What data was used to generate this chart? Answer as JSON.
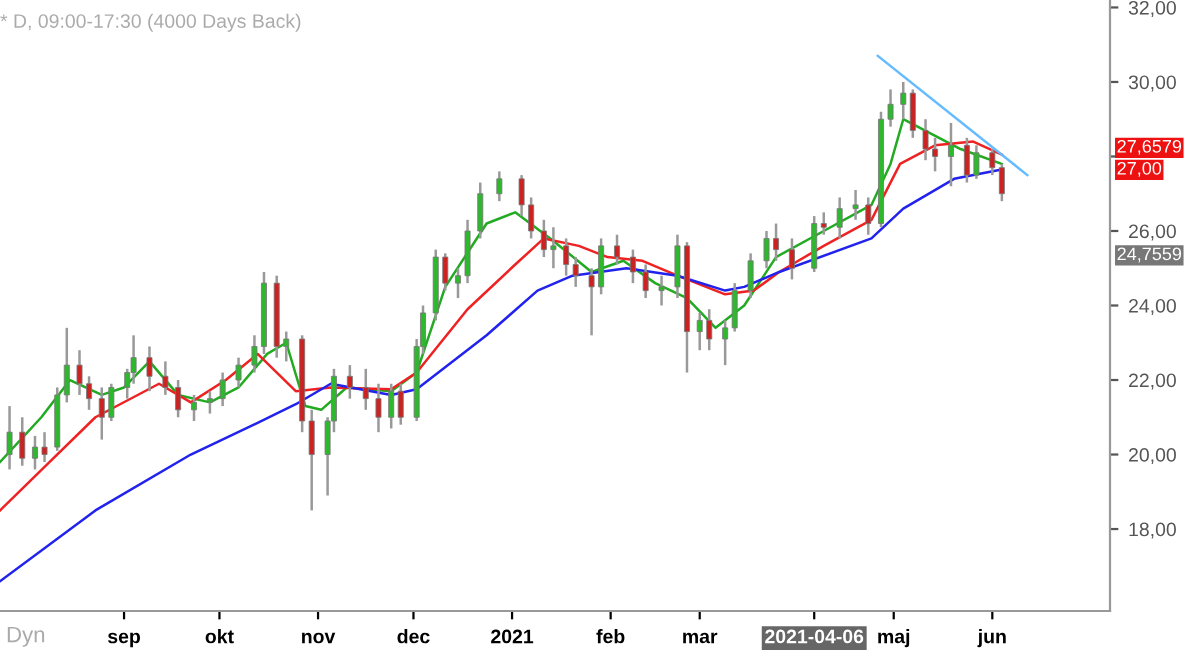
{
  "chart_data": {
    "type": "candlestick",
    "title": "* D, 09:00-17:30 (4000 Days Back)",
    "x": [
      "2020-07-27",
      "2020-07-31",
      "2020-08-04",
      "2020-08-07",
      "2020-08-11",
      "2020-08-14",
      "2020-08-18",
      "2020-08-21",
      "2020-08-25",
      "2020-08-28",
      "2020-09-02",
      "2020-09-04",
      "2020-09-09",
      "2020-09-14",
      "2020-09-18",
      "2020-09-23",
      "2020-09-28",
      "2020-10-02",
      "2020-10-07",
      "2020-10-12",
      "2020-10-15",
      "2020-10-19",
      "2020-10-22",
      "2020-10-27",
      "2020-10-30",
      "2020-11-04",
      "2020-11-06",
      "2020-11-11",
      "2020-11-16",
      "2020-11-20",
      "2020-11-24",
      "2020-11-27",
      "2020-12-02",
      "2020-12-04",
      "2020-12-08",
      "2020-12-11",
      "2020-12-15",
      "2020-12-18",
      "2020-12-22",
      "2020-12-28",
      "2021-01-04",
      "2021-01-07",
      "2021-01-11",
      "2021-01-14",
      "2021-01-18",
      "2021-01-21",
      "2021-01-26",
      "2021-01-29",
      "2021-02-03",
      "2021-02-08",
      "2021-02-12",
      "2021-02-17",
      "2021-02-22",
      "2021-02-25",
      "2021-03-01",
      "2021-03-04",
      "2021-03-09",
      "2021-03-12",
      "2021-03-17",
      "2021-03-22",
      "2021-03-25",
      "2021-03-30",
      "2021-04-06",
      "2021-04-09",
      "2021-04-14",
      "2021-04-19",
      "2021-04-23",
      "2021-04-27",
      "2021-04-30",
      "2021-05-04",
      "2021-05-07",
      "2021-05-11",
      "2021-05-14",
      "2021-05-19",
      "2021-05-24",
      "2021-05-27",
      "2021-06-01",
      "2021-06-04"
    ],
    "ohlc": [
      [
        20.0,
        21.3,
        19.6,
        20.6
      ],
      [
        20.6,
        21.0,
        19.7,
        19.9
      ],
      [
        19.9,
        20.5,
        19.6,
        20.2
      ],
      [
        20.2,
        20.6,
        19.8,
        20.0
      ],
      [
        20.2,
        21.8,
        20.1,
        21.6
      ],
      [
        21.6,
        23.4,
        21.4,
        22.4
      ],
      [
        22.4,
        22.8,
        21.6,
        21.9
      ],
      [
        21.9,
        22.1,
        21.2,
        21.5
      ],
      [
        21.5,
        21.8,
        20.4,
        21.0
      ],
      [
        21.0,
        21.9,
        20.9,
        21.8
      ],
      [
        21.8,
        22.3,
        21.5,
        22.2
      ],
      [
        22.2,
        23.2,
        21.9,
        22.6
      ],
      [
        22.6,
        22.9,
        21.7,
        22.1
      ],
      [
        22.1,
        22.5,
        21.6,
        21.8
      ],
      [
        21.8,
        22.0,
        21.0,
        21.2
      ],
      [
        21.2,
        21.6,
        20.9,
        21.4
      ],
      [
        21.4,
        21.7,
        21.1,
        21.5
      ],
      [
        21.5,
        22.2,
        21.3,
        22.0
      ],
      [
        22.0,
        22.6,
        21.8,
        22.4
      ],
      [
        22.4,
        23.2,
        22.2,
        22.9
      ],
      [
        22.9,
        24.9,
        22.7,
        24.6
      ],
      [
        24.6,
        24.8,
        22.6,
        22.9
      ],
      [
        22.9,
        23.3,
        22.5,
        23.1
      ],
      [
        23.1,
        23.2,
        20.6,
        20.9
      ],
      [
        20.9,
        21.2,
        18.5,
        20.0
      ],
      [
        20.0,
        21.0,
        18.9,
        20.9
      ],
      [
        20.9,
        22.3,
        20.6,
        22.1
      ],
      [
        22.1,
        22.4,
        21.5,
        21.8
      ],
      [
        21.8,
        22.3,
        21.2,
        21.5
      ],
      [
        21.5,
        21.9,
        20.6,
        21.0
      ],
      [
        21.0,
        21.9,
        20.7,
        21.7
      ],
      [
        21.7,
        21.9,
        20.8,
        21.0
      ],
      [
        21.0,
        23.1,
        20.9,
        22.9
      ],
      [
        22.9,
        24.0,
        22.7,
        23.8
      ],
      [
        23.8,
        25.5,
        23.6,
        25.3
      ],
      [
        25.3,
        25.4,
        24.4,
        24.6
      ],
      [
        24.6,
        25.0,
        24.2,
        24.8
      ],
      [
        24.8,
        26.3,
        24.6,
        26.0
      ],
      [
        26.0,
        27.3,
        25.8,
        27.0
      ],
      [
        27.0,
        27.6,
        26.8,
        27.4
      ],
      [
        27.4,
        27.5,
        26.4,
        26.7
      ],
      [
        26.7,
        26.9,
        25.8,
        26.0
      ],
      [
        26.0,
        26.3,
        25.3,
        25.5
      ],
      [
        25.5,
        26.1,
        25.0,
        25.6
      ],
      [
        25.6,
        25.8,
        24.8,
        25.1
      ],
      [
        25.1,
        25.3,
        24.5,
        24.8
      ],
      [
        24.8,
        25.0,
        23.2,
        24.5
      ],
      [
        24.5,
        25.8,
        24.3,
        25.6
      ],
      [
        25.6,
        25.9,
        25.1,
        25.3
      ],
      [
        25.3,
        25.5,
        24.6,
        24.9
      ],
      [
        24.9,
        25.1,
        24.2,
        24.4
      ],
      [
        24.4,
        24.8,
        24.0,
        24.5
      ],
      [
        24.5,
        25.9,
        24.2,
        25.6
      ],
      [
        25.6,
        25.7,
        22.2,
        23.3
      ],
      [
        23.3,
        23.8,
        22.8,
        23.6
      ],
      [
        23.6,
        23.9,
        22.8,
        23.1
      ],
      [
        23.1,
        23.6,
        22.4,
        23.4
      ],
      [
        23.4,
        24.6,
        23.3,
        24.4
      ],
      [
        24.4,
        25.4,
        24.2,
        25.2
      ],
      [
        25.2,
        26.0,
        25.0,
        25.8
      ],
      [
        25.8,
        26.2,
        25.2,
        25.5
      ],
      [
        25.5,
        25.8,
        24.7,
        25.0
      ],
      [
        25.0,
        26.4,
        24.9,
        26.2
      ],
      [
        26.2,
        26.5,
        25.9,
        26.1
      ],
      [
        26.1,
        26.9,
        25.8,
        26.6
      ],
      [
        26.6,
        27.1,
        26.3,
        26.7
      ],
      [
        26.7,
        26.9,
        25.9,
        26.2
      ],
      [
        26.2,
        29.2,
        26.1,
        29.0
      ],
      [
        29.0,
        29.8,
        28.8,
        29.4
      ],
      [
        29.4,
        30.0,
        29.0,
        29.7
      ],
      [
        29.7,
        29.8,
        28.5,
        28.7
      ],
      [
        28.7,
        29.0,
        27.9,
        28.2
      ],
      [
        28.2,
        28.5,
        27.6,
        28.0
      ],
      [
        28.0,
        28.9,
        27.2,
        28.3
      ],
      [
        28.3,
        28.5,
        27.3,
        27.5
      ],
      [
        27.5,
        28.3,
        27.4,
        28.1
      ],
      [
        28.1,
        28.2,
        27.5,
        27.7
      ],
      [
        27.7,
        27.8,
        26.8,
        27.0
      ]
    ],
    "series": [
      {
        "type": "line",
        "color": "#22aa22",
        "x": [
          "2020-07-24",
          "2020-08-06",
          "2020-08-15",
          "2020-08-25",
          "2020-09-01",
          "2020-09-09",
          "2020-09-18",
          "2020-09-28",
          "2020-10-07",
          "2020-10-16",
          "2020-10-22",
          "2020-10-28",
          "2020-11-02",
          "2020-11-10",
          "2020-11-24",
          "2020-12-02",
          "2020-12-11",
          "2020-12-24",
          "2021-01-02",
          "2021-01-13",
          "2021-01-26",
          "2021-02-05",
          "2021-02-15",
          "2021-02-25",
          "2021-03-06",
          "2021-03-15",
          "2021-03-25",
          "2021-04-09",
          "2021-04-24",
          "2021-04-30",
          "2021-05-04",
          "2021-05-13",
          "2021-05-22",
          "2021-06-04"
        ],
        "values": [
          19.8,
          21.0,
          22.0,
          21.6,
          21.8,
          22.5,
          21.6,
          21.4,
          21.8,
          22.7,
          23.0,
          21.3,
          21.2,
          21.8,
          21.7,
          22.2,
          24.5,
          26.2,
          26.5,
          25.8,
          24.9,
          25.2,
          24.6,
          24.2,
          23.4,
          24.0,
          25.3,
          26.0,
          26.7,
          27.8,
          29.0,
          28.6,
          28.2,
          27.8
        ]
      },
      {
        "type": "line",
        "color": "#ee2222",
        "x": [
          "2020-07-24",
          "2020-08-05",
          "2020-08-23",
          "2020-09-12",
          "2020-09-22",
          "2020-10-03",
          "2020-10-13",
          "2020-10-25",
          "2020-11-05",
          "2020-11-24",
          "2020-12-02",
          "2020-12-18",
          "2021-01-02",
          "2021-01-11",
          "2021-01-22",
          "2021-01-31",
          "2021-02-11",
          "2021-02-22",
          "2021-03-09",
          "2021-03-18",
          "2021-03-26",
          "2021-04-09",
          "2021-04-24",
          "2021-05-03",
          "2021-05-14",
          "2021-05-26",
          "2021-06-04"
        ],
        "values": [
          18.5,
          19.5,
          21.0,
          21.9,
          21.4,
          22.0,
          22.7,
          21.7,
          21.8,
          21.75,
          22.2,
          23.9,
          25.1,
          25.8,
          25.6,
          25.3,
          25.2,
          24.8,
          24.3,
          24.4,
          24.9,
          25.6,
          26.3,
          27.8,
          28.3,
          28.4,
          28.05
        ]
      },
      {
        "type": "line",
        "color": "#2222ee",
        "x": [
          "2020-07-24",
          "2020-08-23",
          "2020-09-22",
          "2020-10-13",
          "2020-10-25",
          "2020-11-05",
          "2020-11-24",
          "2020-12-02",
          "2020-12-24",
          "2021-01-09",
          "2021-01-20",
          "2021-02-06",
          "2021-02-22",
          "2021-03-09",
          "2021-03-15",
          "2021-03-26",
          "2021-04-24",
          "2021-05-04",
          "2021-05-20",
          "2021-06-04"
        ],
        "values": [
          16.6,
          18.5,
          20.0,
          20.85,
          21.35,
          21.9,
          21.6,
          21.75,
          23.2,
          24.4,
          24.8,
          25.0,
          24.8,
          24.4,
          24.5,
          24.9,
          25.8,
          26.6,
          27.4,
          27.65
        ]
      },
      {
        "type": "line",
        "color": "#66bbff",
        "x": [
          "2021-04-26",
          "2021-06-12"
        ],
        "values": [
          30.7,
          27.5
        ]
      }
    ],
    "xlim": [
      "2020-07-24",
      "2021-07-08"
    ],
    "xticks": [
      {
        "value": "2020-09-01",
        "label": "sep"
      },
      {
        "value": "2020-10-01",
        "label": "okt"
      },
      {
        "value": "2020-11-01",
        "label": "nov"
      },
      {
        "value": "2020-12-01",
        "label": "dec"
      },
      {
        "value": "2021-01-01",
        "label": "2021"
      },
      {
        "value": "2021-02-01",
        "label": "feb"
      },
      {
        "value": "2021-03-01",
        "label": "mar"
      },
      {
        "value": "2021-04-06",
        "label": "2021-04-06"
      },
      {
        "value": "2021-05-01",
        "label": "maj"
      },
      {
        "value": "2021-06-01",
        "label": "jun"
      }
    ],
    "ylim": [
      15.8,
      32.2
    ],
    "yticks": [
      {
        "value": 18,
        "label": "18,00"
      },
      {
        "value": 20,
        "label": "20,00"
      },
      {
        "value": 22,
        "label": "22,00"
      },
      {
        "value": 24,
        "label": "24,00"
      },
      {
        "value": 26,
        "label": "26,00"
      },
      {
        "value": 28,
        "label": null
      },
      {
        "value": 30,
        "label": "30,00"
      },
      {
        "value": 32,
        "label": "32,00"
      }
    ],
    "annotations": [
      "27,6579",
      "27,00",
      "24,7559",
      "Dyn"
    ]
  }
}
